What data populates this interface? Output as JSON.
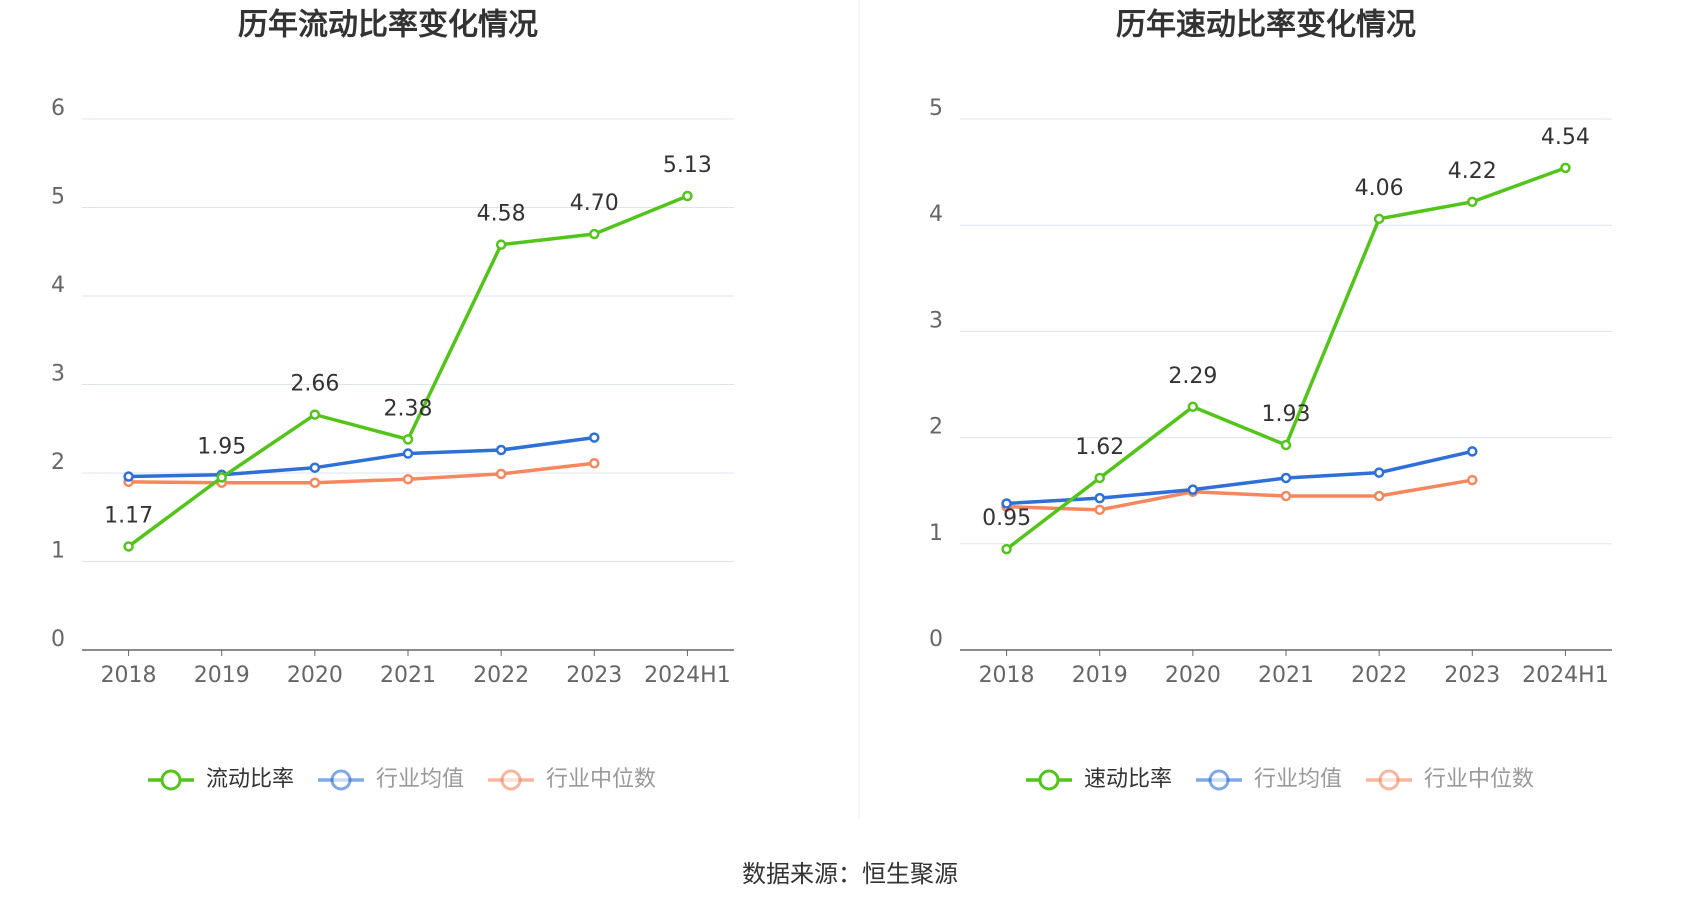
{
  "chart_data": [
    {
      "type": "line",
      "title": "历年流动比率变化情况",
      "categories": [
        "2018",
        "2019",
        "2020",
        "2021",
        "2022",
        "2023",
        "2024H1"
      ],
      "ylim": [
        0,
        6
      ],
      "yticks": [
        0,
        1,
        2,
        3,
        4,
        5,
        6
      ],
      "grid": true,
      "series": [
        {
          "name": "流动比率",
          "color": "#52c41a",
          "values": [
            1.17,
            1.95,
            2.66,
            2.38,
            4.58,
            4.7,
            5.13
          ],
          "value_labels": [
            "1.17",
            "1.95",
            "2.66",
            "2.38",
            "4.58",
            "4.70",
            "5.13"
          ]
        },
        {
          "name": "行业均值",
          "color": "#2f6fd8",
          "values": [
            1.96,
            1.98,
            2.06,
            2.22,
            2.26,
            2.4,
            null
          ]
        },
        {
          "name": "行业中位数",
          "color": "#f5875e",
          "values": [
            1.9,
            1.89,
            1.89,
            1.93,
            1.99,
            2.11,
            null
          ]
        }
      ]
    },
    {
      "type": "line",
      "title": "历年速动比率变化情况",
      "categories": [
        "2018",
        "2019",
        "2020",
        "2021",
        "2022",
        "2023",
        "2024H1"
      ],
      "ylim": [
        0,
        5
      ],
      "yticks": [
        0,
        1,
        2,
        3,
        4,
        5
      ],
      "grid": true,
      "series": [
        {
          "name": "速动比率",
          "color": "#52c41a",
          "values": [
            0.95,
            1.62,
            2.29,
            1.93,
            4.06,
            4.22,
            4.54
          ],
          "value_labels": [
            "0.95",
            "1.62",
            "2.29",
            "1.93",
            "4.06",
            "4.22",
            "4.54"
          ]
        },
        {
          "name": "行业均值",
          "color": "#2f6fd8",
          "values": [
            1.38,
            1.43,
            1.51,
            1.62,
            1.67,
            1.87,
            null
          ]
        },
        {
          "name": "行业中位数",
          "color": "#f5875e",
          "values": [
            1.35,
            1.32,
            1.49,
            1.45,
            1.45,
            1.6,
            null
          ]
        }
      ]
    }
  ],
  "source": "数据来源：恒生聚源"
}
